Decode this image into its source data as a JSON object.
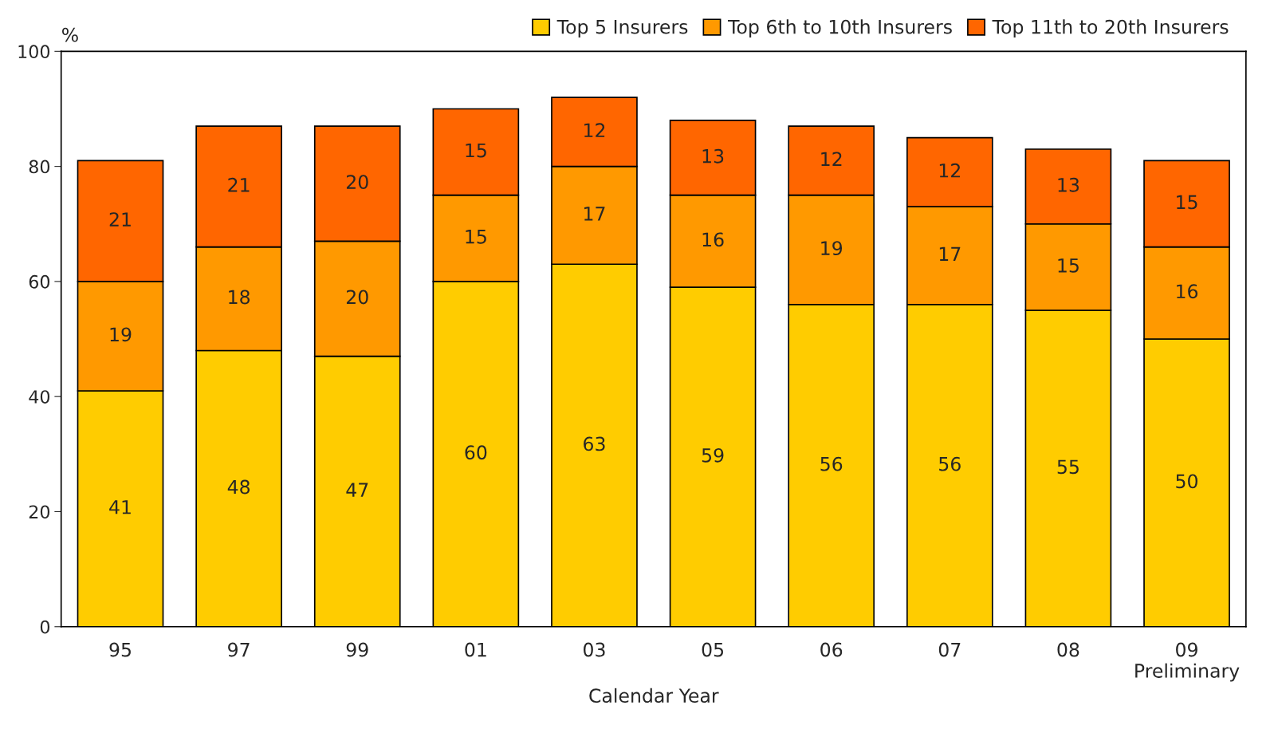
{
  "chart_data": {
    "type": "bar",
    "stacked": true,
    "xlabel": "Calendar Year",
    "ylabel": "%",
    "categories": [
      "95",
      "97",
      "99",
      "01",
      "03",
      "05",
      "06",
      "07",
      "08",
      "09\nPreliminary"
    ],
    "series": [
      {
        "name": "Top 5 Insurers",
        "color": "#ffcc00",
        "values": [
          41,
          48,
          47,
          60,
          63,
          59,
          56,
          56,
          55,
          50
        ]
      },
      {
        "name": "Top 6th to 10th Insurers",
        "color": "#ff9900",
        "values": [
          19,
          18,
          20,
          15,
          17,
          16,
          19,
          17,
          15,
          16
        ]
      },
      {
        "name": "Top 11th to 20th Insurers",
        "color": "#ff6600",
        "values": [
          21,
          21,
          20,
          15,
          12,
          13,
          12,
          12,
          13,
          15
        ]
      }
    ],
    "ylim": [
      0,
      100
    ],
    "yticks": [
      0,
      20,
      40,
      60,
      80,
      100
    ],
    "data_labels": true,
    "grid": false,
    "legend": "top right"
  }
}
